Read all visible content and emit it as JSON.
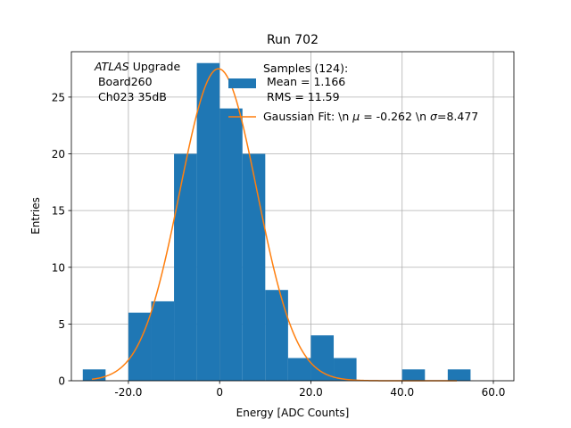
{
  "chart_data": {
    "type": "bar",
    "title": "Run 702",
    "xlabel": "Energy [ADC Counts]",
    "ylabel": "Entries",
    "xlim": [
      -32.5,
      64.5
    ],
    "ylim": [
      0,
      29
    ],
    "grid": true,
    "xticks": [
      -20,
      0,
      20,
      40,
      60
    ],
    "xtick_labels": [
      "-20.0",
      "0",
      "20.0",
      "40.0",
      "60.0"
    ],
    "yticks": [
      0,
      5,
      10,
      15,
      20,
      25
    ],
    "yticks_labels": [
      "0",
      "5",
      "10",
      "15",
      "20",
      "25"
    ],
    "bins": {
      "edges": [
        -30,
        -25,
        -20,
        -15,
        -10,
        -5,
        0,
        5,
        10,
        15,
        20,
        25,
        30,
        35,
        40,
        45,
        50,
        55
      ],
      "counts": [
        1,
        0,
        6,
        7,
        20,
        28,
        24,
        20,
        8,
        2,
        4,
        2,
        0,
        0,
        1,
        0,
        1
      ],
      "color": "#1f77b4"
    },
    "fit": {
      "mu": -0.262,
      "sigma": 8.477,
      "amplitude": 27.5,
      "x_range": [
        -28,
        52
      ],
      "color": "#ff7f0e"
    },
    "annotation": {
      "italic": "ATLAS",
      "rest": " Upgrade",
      "line2": " Board260",
      "line3": " Ch023 35dB"
    },
    "legend": {
      "placement": "top-right",
      "hist_lines": [
        "Samples (124):",
        " Mean = 1.166",
        " RMS = 11.59"
      ],
      "fit_label_prefix": "Gaussian Fit: \\n ",
      "fit_mu_symbol": "μ",
      "fit_mu_value": " = -0.262 \\n ",
      "fit_sigma_symbol": "σ",
      "fit_sigma_value": "=8.477"
    }
  }
}
